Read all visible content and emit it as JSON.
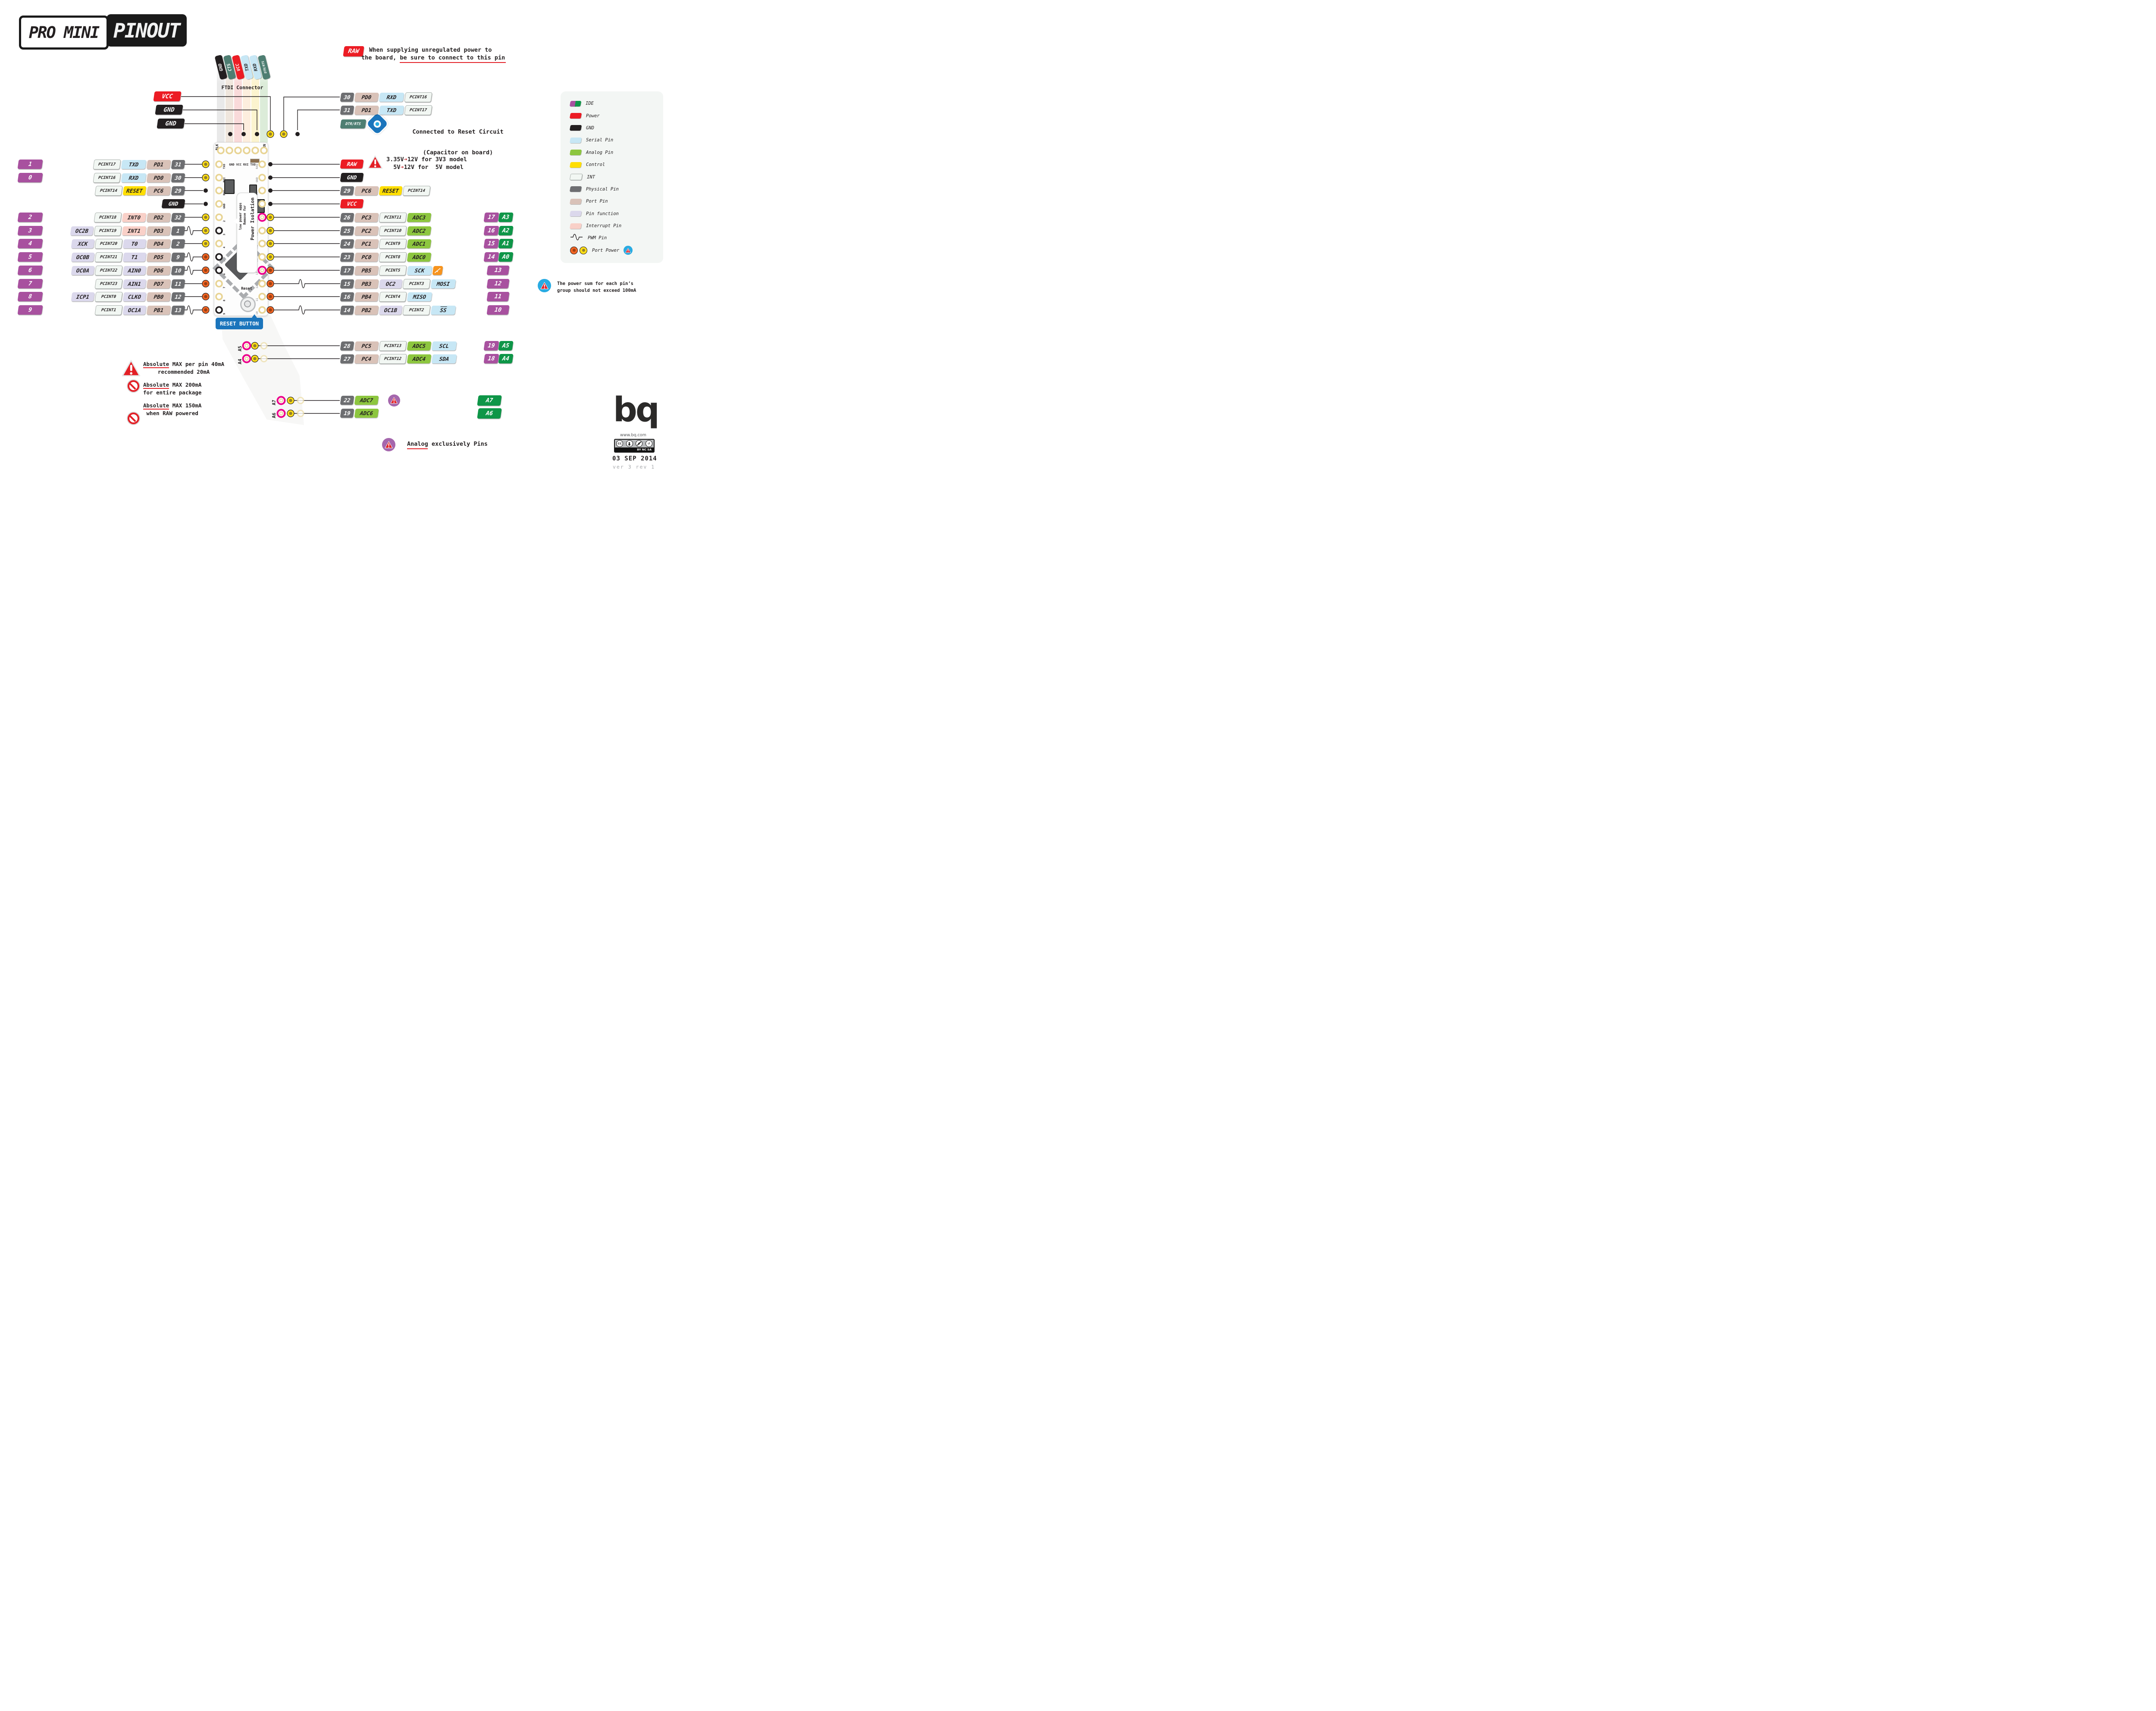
{
  "title": {
    "left": "PRO MINI",
    "right": "PINOUT"
  },
  "ftdi": {
    "caption": "FTDI Connector",
    "tags": [
      {
        "label": "GND",
        "type": "gnd"
      },
      {
        "label": "CTS",
        "type": "teal"
      },
      {
        "label": "VCC",
        "type": "power"
      },
      {
        "label": "TXD",
        "type": "serial"
      },
      {
        "label": "RXD",
        "type": "serial"
      },
      {
        "label": "DTR/RTS",
        "type": "teal"
      }
    ]
  },
  "supply_labels": [
    {
      "label": "VCC",
      "type": "power"
    },
    {
      "label": "GND",
      "type": "gnd"
    },
    {
      "label": "GND",
      "type": "gnd"
    }
  ],
  "serial_rows": [
    {
      "tags": [
        [
          "30",
          "phys"
        ],
        [
          "PD0",
          "port"
        ],
        [
          "RXD",
          "serial"
        ],
        [
          "PCINT16",
          "int"
        ]
      ]
    },
    {
      "tags": [
        [
          "31",
          "phys"
        ],
        [
          "PD1",
          "port"
        ],
        [
          "TXD",
          "serial"
        ],
        [
          "PCINT17",
          "int"
        ]
      ]
    }
  ],
  "dtr_row": {
    "tag": {
      "label": "DTR/RTS",
      "type": "teal"
    },
    "note1": "Connected to Reset Circuit",
    "note2": "(Capacitor on board)"
  },
  "raw_note": {
    "tag": "RAW",
    "line1": "When supplying unregulated power to",
    "line2": "the board, be sure to connect to this pin"
  },
  "volt_note": {
    "line1": "3.35V→12V for 3V3 model",
    "line2": "  5V→12V for  5V model"
  },
  "left_rows": [
    {
      "ide": "1",
      "tags": [
        [
          "PCINT17",
          "int"
        ],
        [
          "TXD",
          "serial"
        ],
        [
          "PD1",
          "port"
        ],
        [
          "31",
          "phys"
        ]
      ],
      "pad": "yellow"
    },
    {
      "ide": "0",
      "tags": [
        [
          "PCINT16",
          "int"
        ],
        [
          "RXD",
          "serial"
        ],
        [
          "PD0",
          "port"
        ],
        [
          "30",
          "phys"
        ]
      ],
      "pad": "yellow"
    },
    {
      "ide": null,
      "tags": [
        [
          "PCINT14",
          "int"
        ],
        [
          "RESET",
          "control"
        ],
        [
          "PC6",
          "port"
        ],
        [
          "29",
          "phys"
        ]
      ],
      "pad": "black"
    },
    {
      "ide": null,
      "tags": [
        [
          "GND",
          "gnd"
        ]
      ],
      "pad": "black"
    },
    {
      "ide": "2",
      "tags": [
        [
          "PCINT18",
          "int"
        ],
        [
          "INT0",
          "interrupt"
        ],
        [
          "PD2",
          "port"
        ],
        [
          "32",
          "phys"
        ]
      ],
      "pad": "yellow"
    },
    {
      "ide": "3",
      "tags": [
        [
          "OC2B",
          "func"
        ],
        [
          "PCINT19",
          "int"
        ],
        [
          "INT1",
          "interrupt"
        ],
        [
          "PD3",
          "port"
        ],
        [
          "1",
          "phys"
        ]
      ],
      "pad": "yellow",
      "pwm": true
    },
    {
      "ide": "4",
      "tags": [
        [
          "XCK",
          "func"
        ],
        [
          "PCINT20",
          "int"
        ],
        [
          "T0",
          "func"
        ],
        [
          "PD4",
          "port"
        ],
        [
          "2",
          "phys"
        ]
      ],
      "pad": "yellow"
    },
    {
      "ide": "5",
      "tags": [
        [
          "OC0B",
          "func"
        ],
        [
          "PCINT21",
          "int"
        ],
        [
          "T1",
          "func"
        ],
        [
          "PD5",
          "port"
        ],
        [
          "9",
          "phys"
        ]
      ],
      "pad": "orange",
      "pwm": true
    },
    {
      "ide": "6",
      "tags": [
        [
          "OC0A",
          "func"
        ],
        [
          "PCINT22",
          "int"
        ],
        [
          "AIN0",
          "func"
        ],
        [
          "PD6",
          "port"
        ],
        [
          "10",
          "phys"
        ]
      ],
      "pad": "orange",
      "pwm": true
    },
    {
      "ide": "7",
      "tags": [
        [
          "PCINT23",
          "int"
        ],
        [
          "AIN1",
          "func"
        ],
        [
          "PD7",
          "port"
        ],
        [
          "11",
          "phys"
        ]
      ],
      "pad": "orange"
    },
    {
      "ide": "8",
      "tags": [
        [
          "ICP1",
          "func"
        ],
        [
          "PCINT0",
          "int"
        ],
        [
          "CLKO",
          "func"
        ],
        [
          "PB0",
          "port"
        ],
        [
          "12",
          "phys"
        ]
      ],
      "pad": "orange"
    },
    {
      "ide": "9",
      "tags": [
        [
          "PCINT1",
          "int"
        ],
        [
          "OC1A",
          "func"
        ],
        [
          "PB1",
          "port"
        ],
        [
          "13",
          "phys"
        ]
      ],
      "pad": "orange",
      "pwm": true
    }
  ],
  "right_rows": [
    {
      "tags": [
        [
          "RAW",
          "power"
        ]
      ],
      "pad": "black"
    },
    {
      "tags": [
        [
          "GND",
          "gnd"
        ]
      ],
      "pad": "black"
    },
    {
      "tags": [
        [
          "29",
          "phys"
        ],
        [
          "PC6",
          "port"
        ],
        [
          "RESET",
          "control"
        ],
        [
          "PCINT14",
          "int"
        ]
      ],
      "pad": "black"
    },
    {
      "tags": [
        [
          "VCC",
          "power"
        ]
      ],
      "pad": "black"
    },
    {
      "tags": [
        [
          "26",
          "phys"
        ],
        [
          "PC3",
          "port"
        ],
        [
          "PCINT11",
          "int"
        ],
        [
          "ADC3",
          "analog"
        ]
      ],
      "pad": "yellow",
      "ide": [
        "17",
        "A3"
      ]
    },
    {
      "tags": [
        [
          "25",
          "phys"
        ],
        [
          "PC2",
          "port"
        ],
        [
          "PCINT10",
          "int"
        ],
        [
          "ADC2",
          "analog"
        ]
      ],
      "pad": "yellow",
      "ide": [
        "16",
        "A2"
      ]
    },
    {
      "tags": [
        [
          "24",
          "phys"
        ],
        [
          "PC1",
          "port"
        ],
        [
          "PCINT9",
          "int"
        ],
        [
          "ADC1",
          "analog"
        ]
      ],
      "pad": "yellow",
      "ide": [
        "15",
        "A1"
      ]
    },
    {
      "tags": [
        [
          "23",
          "phys"
        ],
        [
          "PC0",
          "port"
        ],
        [
          "PCINT8",
          "int"
        ],
        [
          "ADC0",
          "analog"
        ]
      ],
      "pad": "yellow",
      "ide": [
        "14",
        "A0"
      ]
    },
    {
      "tags": [
        [
          "17",
          "phys"
        ],
        [
          "PB5",
          "port"
        ],
        [
          "PCINT5",
          "int"
        ],
        [
          "SCK",
          "serial"
        ]
      ],
      "led": true,
      "pad": "orange",
      "ide": [
        "13"
      ]
    },
    {
      "tags": [
        [
          "15",
          "phys"
        ],
        [
          "PB3",
          "port"
        ],
        [
          "OC2",
          "func"
        ],
        [
          "PCINT3",
          "int"
        ],
        [
          "MOSI",
          "serial"
        ]
      ],
      "pwm": true,
      "pad": "orange",
      "ide": [
        "12"
      ]
    },
    {
      "tags": [
        [
          "16",
          "phys"
        ],
        [
          "PB4",
          "port"
        ],
        [
          "PCINT4",
          "int"
        ],
        [
          "MISO",
          "serial"
        ]
      ],
      "pad": "orange",
      "ide": [
        "11"
      ]
    },
    {
      "tags": [
        [
          "14",
          "phys"
        ],
        [
          "PB2",
          "port"
        ],
        [
          "OC1B",
          "func"
        ],
        [
          "PCINT2",
          "int"
        ],
        [
          "SS",
          "serial",
          "ov"
        ]
      ],
      "pwm": true,
      "pad": "orange",
      "ide": [
        "10"
      ]
    }
  ],
  "i2c_rows": [
    {
      "tags": [
        [
          "28",
          "phys"
        ],
        [
          "PC5",
          "port"
        ],
        [
          "PCINT13",
          "int"
        ],
        [
          "ADC5",
          "analog"
        ],
        [
          "SCL",
          "serial"
        ]
      ],
      "ide": [
        "19",
        "A5"
      ]
    },
    {
      "tags": [
        [
          "27",
          "phys"
        ],
        [
          "PC4",
          "port"
        ],
        [
          "PCINT12",
          "int"
        ],
        [
          "ADC4",
          "analog"
        ],
        [
          "SDA",
          "serial"
        ]
      ],
      "ide": [
        "18",
        "A4"
      ]
    }
  ],
  "adc_rows": [
    {
      "tags": [
        [
          "22",
          "phys"
        ],
        [
          "ADC7",
          "analog"
        ]
      ],
      "warn": true
    },
    {
      "tags": [
        [
          "19",
          "phys"
        ],
        [
          "ADC6",
          "analog"
        ]
      ]
    }
  ],
  "adc_badges": [
    "A7",
    "A6"
  ],
  "board": {
    "top_left": "BLK",
    "top_right": "GRN",
    "silk": "GND VCC RXI TXO",
    "left_labels": [
      "TXO",
      "RXI",
      "RST",
      "GND",
      "2",
      "3",
      "4",
      "5",
      "6",
      "7",
      "8",
      "9"
    ],
    "right_labels": [
      "RAW",
      "GND",
      "RST",
      "VCC",
      "A3",
      "A2",
      "A1",
      "A0",
      "13",
      "12",
      "11",
      "10"
    ],
    "ext_labels": [
      "A5",
      "A4",
      "A7",
      "A6"
    ],
    "callout1": "Power Isolation",
    "callout2": "Remove for",
    "callout3": "low power apps",
    "reset": "Reset"
  },
  "reset_button": "R​ESET BUTTON",
  "legend": {
    "items": [
      {
        "label": "IDE",
        "type": "ide"
      },
      {
        "label": "Power",
        "type": "power"
      },
      {
        "label": "GND",
        "type": "gnd"
      },
      {
        "label": "Serial Pin",
        "type": "serial"
      },
      {
        "label": "Analog Pin",
        "type": "analog"
      },
      {
        "label": "Control",
        "type": "control"
      },
      {
        "label": "INT",
        "type": "int"
      },
      {
        "label": "Physical Pin",
        "type": "phys"
      },
      {
        "label": "Port Pin",
        "type": "port"
      },
      {
        "label": "Pin function",
        "type": "func"
      },
      {
        "label": "Interrupt Pin",
        "type": "interrupt"
      },
      {
        "label": "PWM Pin",
        "type": "pwm"
      },
      {
        "label": "Port Power",
        "type": "portpower"
      }
    ]
  },
  "power_note": {
    "line1": "The power sum for each pin’s",
    "line2": "group should not exceed 100mA"
  },
  "warnings": [
    {
      "icon": "triangle",
      "line1": "Absolute MAX per pin 40mA",
      "line2": "recommended 20mA"
    },
    {
      "icon": "noentry",
      "line1": "Absolute MAX 200mA",
      "line2": "for entire package"
    },
    {
      "icon": "noentry",
      "line1": "Absolute MAX 150mA",
      "line2": "when RAW powered"
    }
  ],
  "analog_note": "Analog exclusively Pins",
  "footer": {
    "brand": "bq",
    "url": "www.bq.com",
    "cc_strip": "BY NC SA",
    "date": "03 SEP 2014",
    "version": "ver 3 rev 1"
  },
  "colors": {
    "ide_purple": "#a8519f",
    "ide_green": "#0e9648",
    "power_red": "#ec1c24",
    "gnd_black": "#231f20",
    "serial_blue": "#c7e7f5",
    "analog_green": "#8dc63f",
    "control_yellow": "#ffde00",
    "int_white": "#f2f7f3",
    "phys_gray": "#6d6e71",
    "port_tan": "#d9c2b8",
    "func_lavender": "#dbd8ec",
    "interrupt_pink": "#f9d0c8",
    "teal": "#4e7e72",
    "callout_blue": "#1b75bc",
    "eye_blue": "#29abe2",
    "magenta": "#ec008c",
    "pad_orange": "#f26522",
    "pad_yellow": "#ffde17",
    "analog_warn_purple": "#a567ad",
    "led_orange": "#f7941e"
  }
}
